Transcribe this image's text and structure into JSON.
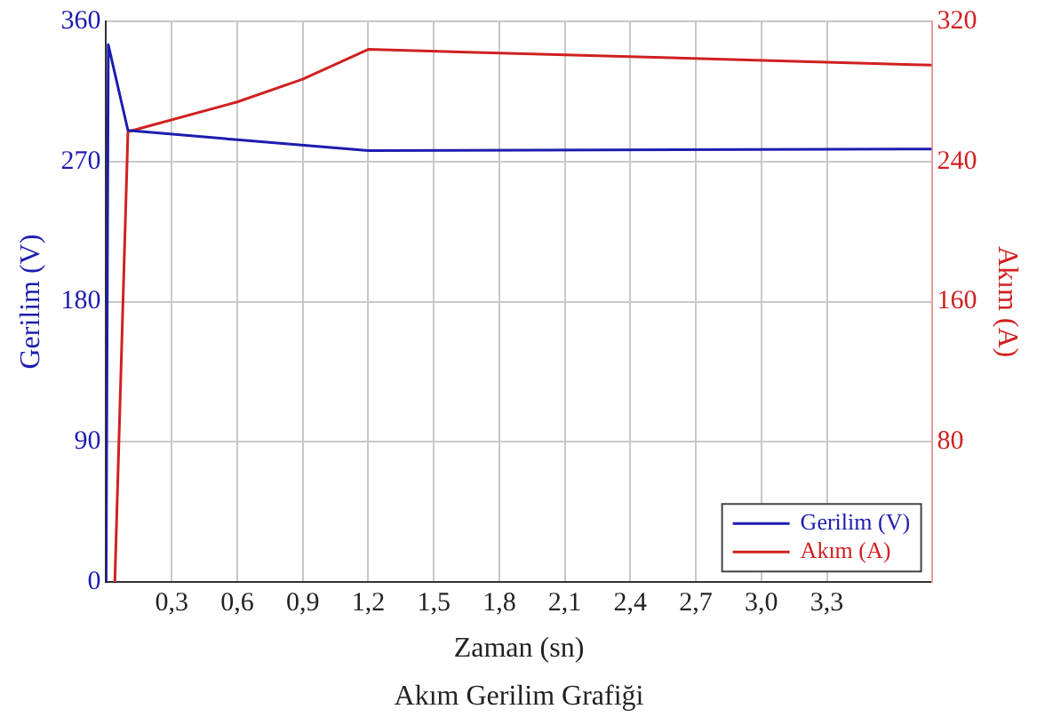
{
  "chart_data": {
    "type": "line",
    "title": "Akım Gerilim Grafiği",
    "xlabel": "Zaman (sn)",
    "ylabel": "Gerilim (V)",
    "y2label": "Akım (A)",
    "xlim": [
      0,
      3.78
    ],
    "xticks": [
      {
        "value": 0.3,
        "label": "0,3"
      },
      {
        "value": 0.6,
        "label": "0,6"
      },
      {
        "value": 0.9,
        "label": "0,9"
      },
      {
        "value": 1.2,
        "label": "1,2"
      },
      {
        "value": 1.5,
        "label": "1,5"
      },
      {
        "value": 1.8,
        "label": "1,8"
      },
      {
        "value": 2.1,
        "label": "2,1"
      },
      {
        "value": 2.4,
        "label": "2,4"
      },
      {
        "value": 2.7,
        "label": "2,7"
      },
      {
        "value": 3.0,
        "label": "3,0"
      },
      {
        "value": 3.3,
        "label": "3,3"
      }
    ],
    "ylim": [
      0,
      360
    ],
    "yticks": [
      0,
      90,
      180,
      270,
      360
    ],
    "y2lim": [
      0,
      320
    ],
    "y2ticks": [
      80,
      160,
      240,
      320
    ],
    "series": [
      {
        "name": "Gerilim (V)",
        "color": "#1c1cb0",
        "x": [
          0,
          0.01,
          0.1,
          0.6,
          1.2,
          3.78
        ],
        "values": [
          0,
          345,
          290,
          284,
          277,
          278
        ]
      },
      {
        "name": "Akım (A)",
        "color": "#d02020",
        "axis": "y2",
        "x": [
          0.04,
          0.1,
          0.6,
          0.9,
          1.2,
          3.78
        ],
        "values": [
          0,
          257,
          274,
          287,
          304,
          295
        ]
      }
    ],
    "grid": true,
    "legend": "bottom right",
    "marker": "none",
    "line_style": "solid"
  }
}
